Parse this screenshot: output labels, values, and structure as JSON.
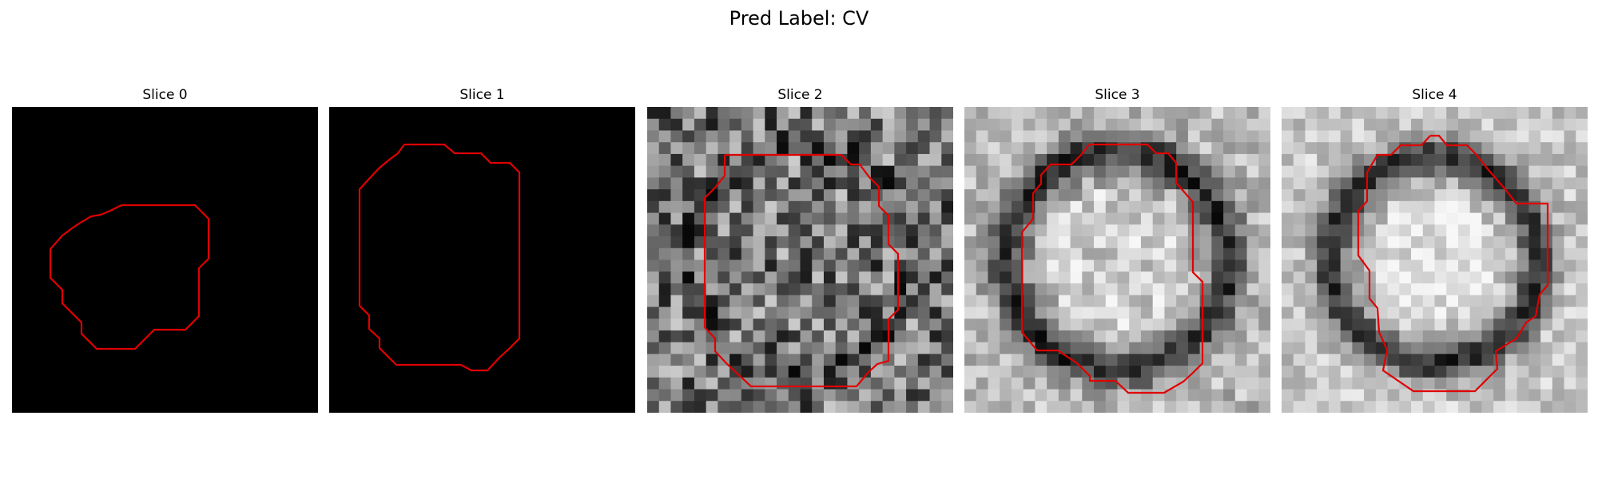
{
  "figure": {
    "title": "Pred Label: CV"
  },
  "panels": [
    {
      "title": "Slice 0",
      "texture": "black"
    },
    {
      "title": "Slice 1",
      "texture": "black"
    },
    {
      "title": "Slice 2",
      "texture": "grayscale-noise"
    },
    {
      "title": "Slice 3",
      "texture": "grayscale-ring"
    },
    {
      "title": "Slice 4",
      "texture": "grayscale-ring-bright"
    }
  ],
  "colors": {
    "contour": "#e00000",
    "background": "#000000"
  }
}
